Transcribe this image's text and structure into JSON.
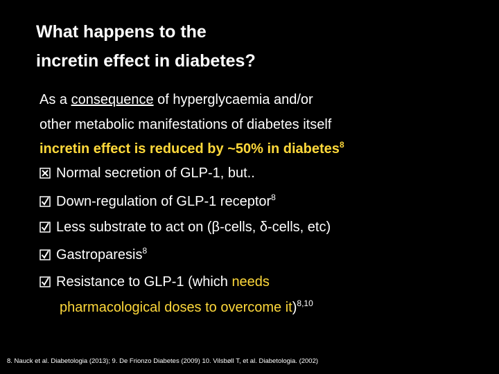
{
  "header": {
    "title_lines": [
      "What happens to the",
      "incretin effect in diabetes?"
    ]
  },
  "body": {
    "intro": {
      "before": "As a ",
      "underlined": "consequence",
      "after": " of hyperglycaemia and/or",
      "line2": "other metabolic manifestations of diabetes itself"
    },
    "highlight": {
      "text": "incretin effect is reduced by ~50% in diabetes",
      "ref": "8"
    },
    "bullets": [
      {
        "text": "Normal secretion of GLP-1, but.."
      },
      {
        "text": "Down-regulation of GLP-1 receptor",
        "ref": "8"
      },
      {
        "text": "Less substrate to act on (β-cells, δ-cells, etc)"
      },
      {
        "text": "Gastroparesis",
        "ref": "8"
      },
      {
        "text": "Resistance to GLP-1 (which ",
        "highlight": "needs",
        "highlight_line2": "pharmacological doses to overcome it",
        "after": ")",
        "ref": "8,10"
      }
    ]
  },
  "footer": {
    "references": "8. Nauck et al. Diabetologia (2013); 9. De Frionzo Diabetes (2009) 10. Vilsbøll T, et al. Diabetologia. (2002)"
  }
}
